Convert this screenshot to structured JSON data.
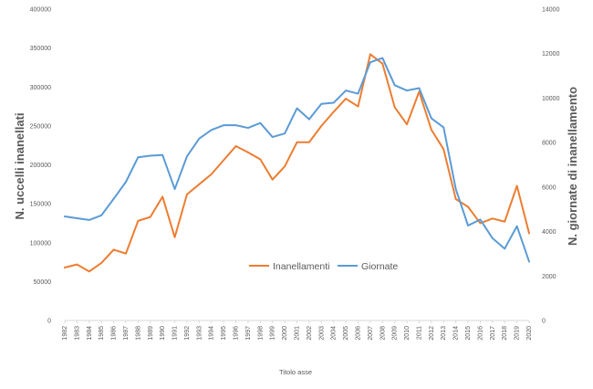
{
  "chart_data": {
    "type": "line",
    "title": "",
    "xlabel": "Titolo asse",
    "ylabel": "N. uccelli inanellati",
    "y2label": "N. giornate di inanellamento",
    "ylim": [
      0,
      400000
    ],
    "y2lim": [
      0,
      14000
    ],
    "yticks": [
      "0",
      "50000",
      "100000",
      "150000",
      "200000",
      "250000",
      "300000",
      "350000",
      "400000"
    ],
    "y2ticks": [
      "0",
      "2000",
      "4000",
      "6000",
      "8000",
      "10000",
      "12000",
      "14000"
    ],
    "categories": [
      "1982",
      "1983",
      "1984",
      "1985",
      "1986",
      "1987",
      "1988",
      "1989",
      "1990",
      "1991",
      "1992",
      "1993",
      "1994",
      "1995",
      "1996",
      "1997",
      "1998",
      "1999",
      "2000",
      "2001",
      "2002",
      "2003",
      "2004",
      "2005",
      "2006",
      "2007",
      "2008",
      "2009",
      "2010",
      "2011",
      "2012",
      "2013",
      "2014",
      "2015",
      "2016",
      "2017",
      "2018",
      "2019",
      "2020"
    ],
    "grid": false,
    "legend": "center",
    "series": [
      {
        "name": "Inanellamenti",
        "axis": "left",
        "color": "#ED7D31",
        "values": [
          68000,
          72000,
          63000,
          74000,
          91000,
          86000,
          128000,
          133000,
          159000,
          107000,
          162000,
          175000,
          188000,
          206000,
          224000,
          216000,
          207000,
          181000,
          198000,
          229000,
          229000,
          250000,
          268000,
          285000,
          275000,
          342000,
          330000,
          274000,
          252000,
          294000,
          245000,
          220000,
          156000,
          146000,
          125000,
          131000,
          127000,
          173000,
          112000
        ]
      },
      {
        "name": "Giornate",
        "axis": "right",
        "color": "#5B9BD5",
        "values": [
          4680,
          4600,
          4520,
          4730,
          5470,
          6230,
          7340,
          7410,
          7440,
          5910,
          7380,
          8180,
          8570,
          8780,
          8780,
          8660,
          8880,
          8250,
          8410,
          9540,
          9050,
          9740,
          9790,
          10340,
          10200,
          11610,
          11800,
          10580,
          10340,
          10450,
          9090,
          8680,
          5910,
          4270,
          4540,
          3700,
          3230,
          4240,
          2650
        ]
      }
    ]
  }
}
